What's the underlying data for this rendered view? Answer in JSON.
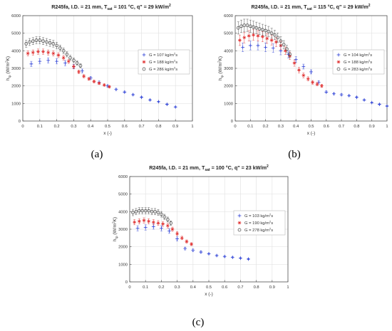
{
  "figure": {
    "captions": [
      "(a)",
      "(b)",
      "(c)"
    ]
  },
  "chart_data": [
    {
      "type": "scatter",
      "title": {
        "main": "R245fa, I.D. = 21 mm, T",
        "sub": "sat",
        "rest": " = 101 °C, q\" = 29 kW/m",
        "sup": "2"
      },
      "xlabel": "x (-)",
      "ylabel": {
        "main": "h",
        "sub": "tp",
        "rest": " (W/m",
        "sup": "2",
        "end": "K)"
      },
      "xlim": [
        0,
        1
      ],
      "ylim": [
        0,
        6000
      ],
      "xticks": [
        0,
        0.1,
        0.2,
        0.3,
        0.4,
        0.5,
        0.6,
        0.7,
        0.8,
        0.9,
        1
      ],
      "yticks": [
        0,
        1000,
        2000,
        3000,
        4000,
        5000,
        6000
      ],
      "xtick_labels": [
        "0",
        "0.1",
        "0.2",
        "0.3",
        "0.4",
        "0.5",
        "0.6",
        "0.7",
        "0.8",
        "0.9",
        "1"
      ],
      "ytick_labels": [
        "0",
        "1000",
        "2000",
        "3000",
        "4000",
        "5000",
        "6000"
      ],
      "grid": true,
      "legend_position": "top-right",
      "series": [
        {
          "name": {
            "main": "G = 107 kg/m",
            "sup": "2",
            "rest": "s"
          },
          "marker": "plus",
          "color": "#2b3fd6",
          "x": [
            0.05,
            0.1,
            0.15,
            0.2,
            0.25,
            0.3,
            0.35,
            0.4,
            0.45,
            0.5,
            0.55,
            0.6,
            0.65,
            0.7,
            0.75,
            0.8,
            0.85,
            0.9
          ],
          "y": [
            3250,
            3400,
            3450,
            3400,
            3300,
            3100,
            2850,
            2450,
            2200,
            2000,
            1800,
            1650,
            1500,
            1350,
            1200,
            1100,
            950,
            800
          ],
          "err": [
            150,
            150,
            150,
            150,
            150,
            130,
            110,
            90,
            80,
            70,
            60,
            50,
            40,
            40,
            30,
            30,
            30,
            30
          ]
        },
        {
          "name": {
            "main": "G = 188 kg/m",
            "sup": "2",
            "rest": "s"
          },
          "marker": "star",
          "color": "#e03030",
          "x": [
            0.03,
            0.06,
            0.09,
            0.12,
            0.15,
            0.18,
            0.21,
            0.24,
            0.27,
            0.3,
            0.33,
            0.36,
            0.39,
            0.42,
            0.45,
            0.48,
            0.51
          ],
          "y": [
            3850,
            3900,
            3950,
            3950,
            3900,
            3850,
            3750,
            3600,
            3400,
            3100,
            2800,
            2550,
            2400,
            2250,
            2150,
            2050,
            1950
          ],
          "err": [
            150,
            150,
            150,
            150,
            150,
            150,
            140,
            130,
            120,
            110,
            100,
            90,
            80,
            80,
            70,
            60,
            60
          ]
        },
        {
          "name": {
            "main": "G = 286 kg/m",
            "sup": "2",
            "rest": "s"
          },
          "marker": "circle",
          "color": "#444444",
          "x": [
            0.02,
            0.04,
            0.06,
            0.08,
            0.1,
            0.12,
            0.14,
            0.16,
            0.18,
            0.2,
            0.22,
            0.24,
            0.26,
            0.28,
            0.3,
            0.32,
            0.34
          ],
          "y": [
            4400,
            4500,
            4550,
            4600,
            4600,
            4550,
            4500,
            4450,
            4400,
            4300,
            4150,
            4000,
            3800,
            3600,
            3450,
            3300,
            3150
          ],
          "err": [
            200,
            200,
            200,
            200,
            200,
            200,
            200,
            200,
            190,
            180,
            170,
            160,
            150,
            140,
            130,
            120,
            110
          ]
        }
      ]
    },
    {
      "type": "scatter",
      "title": {
        "main": "R245fa, I.D. = 21 mm, T",
        "sub": "sat",
        "rest": " = 115 °C, q\" = 29 kW/m",
        "sup": "2"
      },
      "xlabel": "x (-)",
      "ylabel": {
        "main": "h",
        "sub": "tp",
        "rest": " (W/m",
        "sup": "2",
        "end": "K)"
      },
      "xlim": [
        0,
        1
      ],
      "ylim": [
        0,
        6000
      ],
      "xticks": [
        0,
        0.1,
        0.2,
        0.3,
        0.4,
        0.5,
        0.6,
        0.7,
        0.8,
        0.9,
        1
      ],
      "yticks": [
        0,
        1000,
        2000,
        3000,
        4000,
        5000,
        6000
      ],
      "xtick_labels": [
        "0",
        "0.1",
        "0.2",
        "0.3",
        "0.4",
        "0.5",
        "0.6",
        "0.7",
        "0.8",
        "0.9",
        "1"
      ],
      "ytick_labels": [
        "0",
        "1000",
        "2000",
        "3000",
        "4000",
        "5000",
        "6000"
      ],
      "grid": true,
      "legend_position": "top-right",
      "series": [
        {
          "name": {
            "main": "G = 104 kg/m",
            "sup": "2",
            "rest": "s"
          },
          "marker": "plus",
          "color": "#2b3fd6",
          "x": [
            0.05,
            0.1,
            0.15,
            0.2,
            0.25,
            0.3,
            0.35,
            0.4,
            0.45,
            0.5,
            0.55,
            0.6,
            0.65,
            0.7,
            0.75,
            0.8,
            0.85,
            0.9,
            0.95,
            1.0
          ],
          "y": [
            4200,
            4300,
            4300,
            4200,
            4150,
            4000,
            3800,
            3500,
            3100,
            2800,
            2200,
            1650,
            1550,
            1500,
            1450,
            1350,
            1200,
            1050,
            950,
            850
          ],
          "err": [
            250,
            250,
            250,
            250,
            240,
            230,
            200,
            170,
            140,
            120,
            100,
            60,
            50,
            50,
            40,
            40,
            40,
            30,
            30,
            30
          ]
        },
        {
          "name": {
            "main": "G = 188 kg/m",
            "sup": "2",
            "rest": "s"
          },
          "marker": "star",
          "color": "#e03030",
          "x": [
            0.03,
            0.06,
            0.09,
            0.12,
            0.15,
            0.18,
            0.21,
            0.24,
            0.27,
            0.3,
            0.33,
            0.36,
            0.39,
            0.42,
            0.45,
            0.48,
            0.51,
            0.54,
            0.57
          ],
          "y": [
            4600,
            4750,
            4850,
            4900,
            4850,
            4800,
            4700,
            4600,
            4500,
            4300,
            4000,
            3700,
            3300,
            2900,
            2600,
            2400,
            2200,
            2100,
            2000
          ],
          "err": [
            300,
            300,
            300,
            300,
            300,
            290,
            280,
            270,
            260,
            240,
            220,
            200,
            180,
            160,
            140,
            120,
            110,
            100,
            90
          ]
        },
        {
          "name": {
            "main": "G = 283 kg/m",
            "sup": "2",
            "rest": "s"
          },
          "marker": "circle",
          "color": "#444444",
          "x": [
            0.02,
            0.04,
            0.06,
            0.08,
            0.1,
            0.12,
            0.14,
            0.16,
            0.18,
            0.2,
            0.22,
            0.24,
            0.26,
            0.28,
            0.3,
            0.32,
            0.34,
            0.36
          ],
          "y": [
            5300,
            5400,
            5450,
            5450,
            5400,
            5350,
            5300,
            5250,
            5200,
            5150,
            5100,
            5000,
            4900,
            4750,
            4550,
            4350,
            4100,
            3800
          ],
          "err": [
            350,
            350,
            350,
            350,
            350,
            340,
            330,
            320,
            310,
            300,
            290,
            280,
            270,
            260,
            250,
            230,
            210,
            190
          ]
        }
      ]
    },
    {
      "type": "scatter",
      "title": {
        "main": "R245fa, I.D. = 21 mm, T",
        "sub": "sat",
        "rest": " = 100 °C, q\" = 23 kW/m",
        "sup": "2"
      },
      "xlabel": "x (-)",
      "ylabel": {
        "main": "h",
        "sub": "tp",
        "rest": " (W/m",
        "sup": "2",
        "end": "K)"
      },
      "xlim": [
        0,
        1
      ],
      "ylim": [
        0,
        6000
      ],
      "xticks": [
        0,
        0.1,
        0.2,
        0.3,
        0.4,
        0.5,
        0.6,
        0.7,
        0.8,
        0.9,
        1
      ],
      "yticks": [
        0,
        1000,
        2000,
        3000,
        4000,
        5000,
        6000
      ],
      "xtick_labels": [
        "0",
        "0.1",
        "0.2",
        "0.3",
        "0.4",
        "0.5",
        "0.6",
        "0.7",
        "0.8",
        "0.9",
        "1"
      ],
      "ytick_labels": [
        "0",
        "1000",
        "2000",
        "3000",
        "4000",
        "5000",
        "6000"
      ],
      "grid": true,
      "legend_position": "top-right",
      "series": [
        {
          "name": {
            "main": "G = 103 kg/m",
            "sup": "2",
            "rest": "s"
          },
          "marker": "plus",
          "color": "#2b3fd6",
          "x": [
            0.05,
            0.1,
            0.15,
            0.2,
            0.25,
            0.3,
            0.35,
            0.4,
            0.45,
            0.5,
            0.55,
            0.6,
            0.65,
            0.7,
            0.75
          ],
          "y": [
            3050,
            3100,
            3150,
            3050,
            2900,
            2450,
            1900,
            1800,
            1700,
            1600,
            1500,
            1450,
            1400,
            1350,
            1300
          ],
          "err": [
            150,
            150,
            150,
            150,
            140,
            120,
            80,
            70,
            60,
            50,
            40,
            40,
            30,
            30,
            30
          ]
        },
        {
          "name": {
            "main": "G = 190 kg/m",
            "sup": "2",
            "rest": "s"
          },
          "marker": "star",
          "color": "#e03030",
          "x": [
            0.03,
            0.06,
            0.09,
            0.12,
            0.15,
            0.18,
            0.21,
            0.24,
            0.27,
            0.3,
            0.33,
            0.36,
            0.39
          ],
          "y": [
            3400,
            3450,
            3500,
            3450,
            3400,
            3350,
            3300,
            3200,
            3000,
            2750,
            2500,
            2300,
            2150
          ],
          "err": [
            150,
            150,
            150,
            150,
            150,
            140,
            140,
            130,
            120,
            110,
            100,
            90,
            80
          ]
        },
        {
          "name": {
            "main": "G = 278 kg/m",
            "sup": "2",
            "rest": "s"
          },
          "marker": "circle",
          "color": "#444444",
          "x": [
            0.02,
            0.04,
            0.06,
            0.08,
            0.1,
            0.12,
            0.14,
            0.16,
            0.18,
            0.2,
            0.22,
            0.24,
            0.26
          ],
          "y": [
            3950,
            4000,
            4050,
            4050,
            4050,
            4050,
            4000,
            4000,
            3950,
            3850,
            3700,
            3550,
            3350
          ],
          "err": [
            180,
            180,
            180,
            180,
            180,
            180,
            180,
            180,
            170,
            160,
            150,
            140,
            130
          ]
        }
      ]
    }
  ]
}
